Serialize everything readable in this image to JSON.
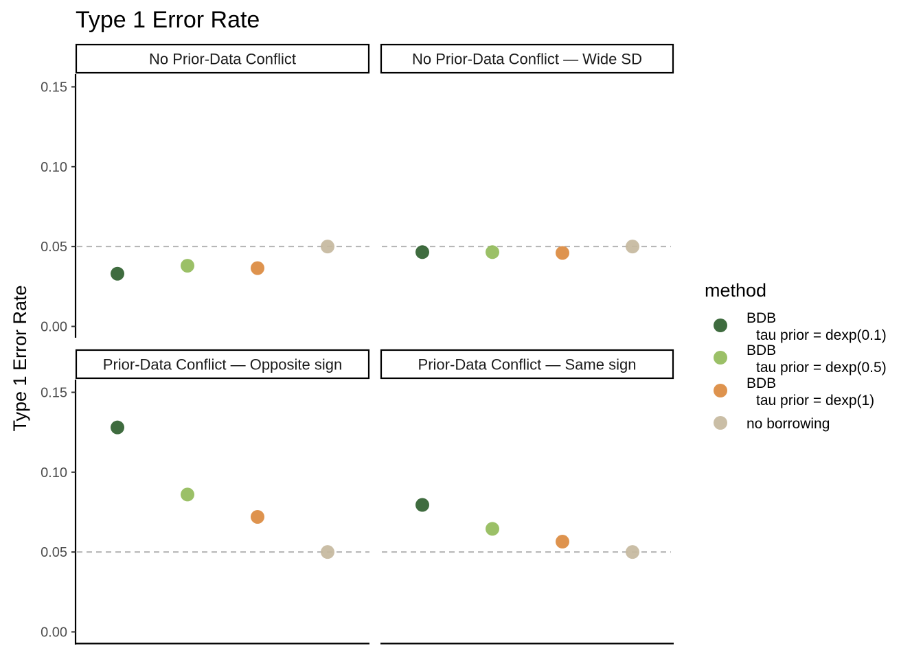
{
  "chart_data": {
    "type": "scatter",
    "title": "Type 1 Error Rate",
    "ylabel": "Type 1 Error Rate",
    "xlabel": "",
    "ylim": [
      -0.005,
      0.157
    ],
    "yticks": [
      "0.00",
      "0.05",
      "0.10",
      "0.15"
    ],
    "reference_line": 0.05,
    "grid": false,
    "legend": {
      "title": "method",
      "position": "right",
      "items": [
        {
          "line1": "BDB",
          "line2": "tau prior = dexp(0.1)",
          "color": "#2f5f2f"
        },
        {
          "line1": "BDB",
          "line2": "tau prior = dexp(0.5)",
          "color": "#93bb5a"
        },
        {
          "line1": "BDB",
          "line2": "tau prior = dexp(1)",
          "color": "#db8a3f"
        },
        {
          "line1": "no borrowing",
          "line2": "",
          "color": "#c6b99e"
        }
      ]
    },
    "panels": [
      {
        "strip": "No Prior-Data Conflict",
        "values": [
          0.033,
          0.038,
          0.0365,
          0.05
        ]
      },
      {
        "strip": "No Prior-Data Conflict — Wide SD",
        "values": [
          0.0465,
          0.0465,
          0.046,
          0.05
        ]
      },
      {
        "strip": "Prior-Data Conflict — Opposite sign",
        "values": [
          0.128,
          0.086,
          0.072,
          0.05
        ]
      },
      {
        "strip": "Prior-Data Conflict — Same sign",
        "values": [
          0.0795,
          0.0645,
          0.0565,
          0.05
        ]
      }
    ]
  }
}
